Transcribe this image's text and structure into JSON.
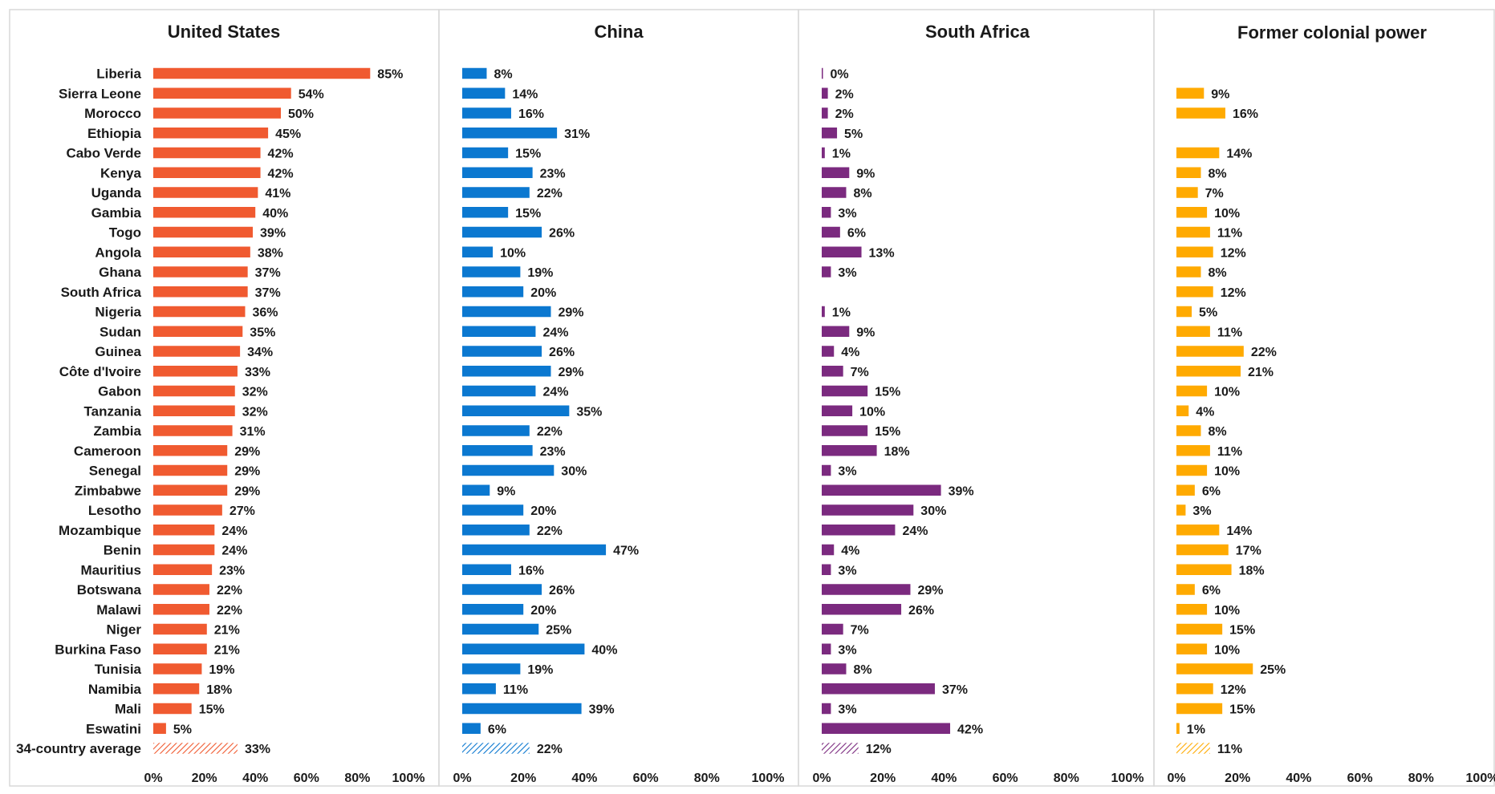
{
  "chart_data": [
    {
      "type": "bar",
      "orientation": "horizontal",
      "title": "United States",
      "color": "#F05A30",
      "categories": [
        "Liberia",
        "Sierra Leone",
        "Morocco",
        "Ethiopia",
        "Cabo Verde",
        "Kenya",
        "Uganda",
        "Gambia",
        "Togo",
        "Angola",
        "Ghana",
        "South Africa",
        "Nigeria",
        "Sudan",
        "Guinea",
        "Côte d'Ivoire",
        "Gabon",
        "Tanzania",
        "Zambia",
        "Cameroon",
        "Senegal",
        "Zimbabwe",
        "Lesotho",
        "Mozambique",
        "Benin",
        "Mauritius",
        "Botswana",
        "Malawi",
        "Niger",
        "Burkina Faso",
        "Tunisia",
        "Namibia",
        "Mali",
        "Eswatini",
        "34-country average"
      ],
      "values": [
        85,
        54,
        50,
        45,
        42,
        42,
        41,
        40,
        39,
        38,
        37,
        37,
        36,
        35,
        34,
        33,
        32,
        32,
        31,
        29,
        29,
        29,
        27,
        24,
        24,
        23,
        22,
        22,
        21,
        21,
        19,
        18,
        15,
        5,
        33
      ],
      "xlim": [
        0,
        100
      ],
      "ticks": [
        "0%",
        "20%",
        "40%",
        "60%",
        "80%",
        "100%"
      ],
      "average_style": "hatched"
    },
    {
      "type": "bar",
      "orientation": "horizontal",
      "title": "China",
      "color": "#0B78D0",
      "categories": [
        "Liberia",
        "Sierra Leone",
        "Morocco",
        "Ethiopia",
        "Cabo Verde",
        "Kenya",
        "Uganda",
        "Gambia",
        "Togo",
        "Angola",
        "Ghana",
        "South Africa",
        "Nigeria",
        "Sudan",
        "Guinea",
        "Côte d'Ivoire",
        "Gabon",
        "Tanzania",
        "Zambia",
        "Cameroon",
        "Senegal",
        "Zimbabwe",
        "Lesotho",
        "Mozambique",
        "Benin",
        "Mauritius",
        "Botswana",
        "Malawi",
        "Niger",
        "Burkina Faso",
        "Tunisia",
        "Namibia",
        "Mali",
        "Eswatini",
        "34-country average"
      ],
      "values": [
        8,
        14,
        16,
        31,
        15,
        23,
        22,
        15,
        26,
        10,
        19,
        20,
        29,
        24,
        26,
        29,
        24,
        35,
        22,
        23,
        30,
        9,
        20,
        22,
        47,
        16,
        26,
        20,
        25,
        40,
        19,
        11,
        39,
        6,
        22
      ],
      "xlim": [
        0,
        100
      ],
      "ticks": [
        "0%",
        "20%",
        "40%",
        "60%",
        "80%",
        "100%"
      ],
      "average_style": "hatched"
    },
    {
      "type": "bar",
      "orientation": "horizontal",
      "title": "South Africa",
      "color": "#7B2A7F",
      "categories": [
        "Liberia",
        "Sierra Leone",
        "Morocco",
        "Ethiopia",
        "Cabo Verde",
        "Kenya",
        "Uganda",
        "Gambia",
        "Togo",
        "Angola",
        "Ghana",
        "South Africa",
        "Nigeria",
        "Sudan",
        "Guinea",
        "Côte d'Ivoire",
        "Gabon",
        "Tanzania",
        "Zambia",
        "Cameroon",
        "Senegal",
        "Zimbabwe",
        "Lesotho",
        "Mozambique",
        "Benin",
        "Mauritius",
        "Botswana",
        "Malawi",
        "Niger",
        "Burkina Faso",
        "Tunisia",
        "Namibia",
        "Mali",
        "Eswatini",
        "34-country average"
      ],
      "values": [
        0,
        2,
        2,
        5,
        1,
        9,
        8,
        3,
        6,
        13,
        3,
        null,
        1,
        9,
        4,
        7,
        15,
        10,
        15,
        18,
        3,
        39,
        30,
        24,
        4,
        3,
        29,
        26,
        7,
        3,
        8,
        37,
        3,
        42,
        12
      ],
      "xlim": [
        0,
        100
      ],
      "ticks": [
        "0%",
        "20%",
        "40%",
        "60%",
        "80%",
        "100%"
      ],
      "average_style": "hatched"
    },
    {
      "type": "bar",
      "orientation": "horizontal",
      "title": "Former colonial power",
      "color": "#FFAA00",
      "categories": [
        "Liberia",
        "Sierra Leone",
        "Morocco",
        "Ethiopia",
        "Cabo Verde",
        "Kenya",
        "Uganda",
        "Gambia",
        "Togo",
        "Angola",
        "Ghana",
        "South Africa",
        "Nigeria",
        "Sudan",
        "Guinea",
        "Côte d'Ivoire",
        "Gabon",
        "Tanzania",
        "Zambia",
        "Cameroon",
        "Senegal",
        "Zimbabwe",
        "Lesotho",
        "Mozambique",
        "Benin",
        "Mauritius",
        "Botswana",
        "Malawi",
        "Niger",
        "Burkina Faso",
        "Tunisia",
        "Namibia",
        "Mali",
        "Eswatini",
        "34-country average"
      ],
      "values": [
        null,
        9,
        16,
        null,
        14,
        8,
        7,
        10,
        11,
        12,
        8,
        12,
        5,
        11,
        22,
        21,
        10,
        4,
        8,
        11,
        10,
        6,
        3,
        14,
        17,
        18,
        6,
        10,
        15,
        10,
        25,
        12,
        15,
        1,
        11
      ],
      "xlim": [
        0,
        100
      ],
      "ticks": [
        "0%",
        "20%",
        "40%",
        "60%",
        "80%",
        "100%"
      ],
      "average_style": "hatched"
    }
  ]
}
